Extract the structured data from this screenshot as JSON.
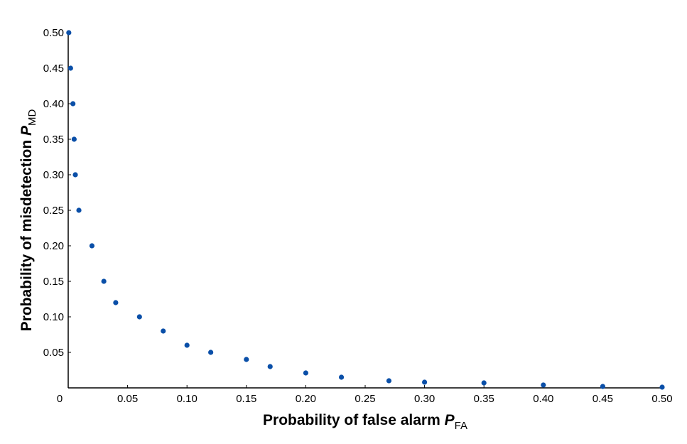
{
  "chart_data": {
    "type": "scatter",
    "title": "",
    "xlabel": {
      "main": "Probability of false alarm ",
      "symbol": "P",
      "subscript": "FA"
    },
    "ylabel": {
      "main": "Probability of misdetection ",
      "symbol": "P",
      "subscript": "MD"
    },
    "xlim": [
      0,
      0.5
    ],
    "ylim": [
      0,
      0.5
    ],
    "x_ticks": [
      0.05,
      0.1,
      0.15,
      0.2,
      0.25,
      0.3,
      0.35,
      0.4,
      0.45,
      0.5
    ],
    "x_tick_labels": [
      "0.05",
      "0.10",
      "0.15",
      "0.20",
      "0.25",
      "0.30",
      "0.35",
      "0.40",
      "0.45",
      "0.50"
    ],
    "y_ticks": [
      0.05,
      0.1,
      0.15,
      0.2,
      0.25,
      0.3,
      0.35,
      0.4,
      0.45,
      0.5
    ],
    "y_tick_labels": [
      "0.05",
      "0.10",
      "0.15",
      "0.20",
      "0.25",
      "0.30",
      "0.35",
      "0.40",
      "0.45",
      "0.50"
    ],
    "origin_label": "0",
    "grid": false,
    "marker_color": "#0a4fa8",
    "series": [
      {
        "x": [
          0.0005,
          0.002,
          0.004,
          0.005,
          0.006,
          0.009,
          0.02,
          0.03,
          0.04,
          0.06,
          0.08,
          0.1,
          0.12,
          0.15,
          0.17,
          0.2,
          0.23,
          0.27,
          0.3,
          0.35,
          0.4,
          0.45,
          0.5
        ],
        "y": [
          0.5,
          0.45,
          0.4,
          0.35,
          0.3,
          0.25,
          0.2,
          0.15,
          0.12,
          0.1,
          0.08,
          0.06,
          0.05,
          0.04,
          0.03,
          0.021,
          0.015,
          0.01,
          0.008,
          0.007,
          0.004,
          0.002,
          0.001
        ]
      }
    ]
  }
}
